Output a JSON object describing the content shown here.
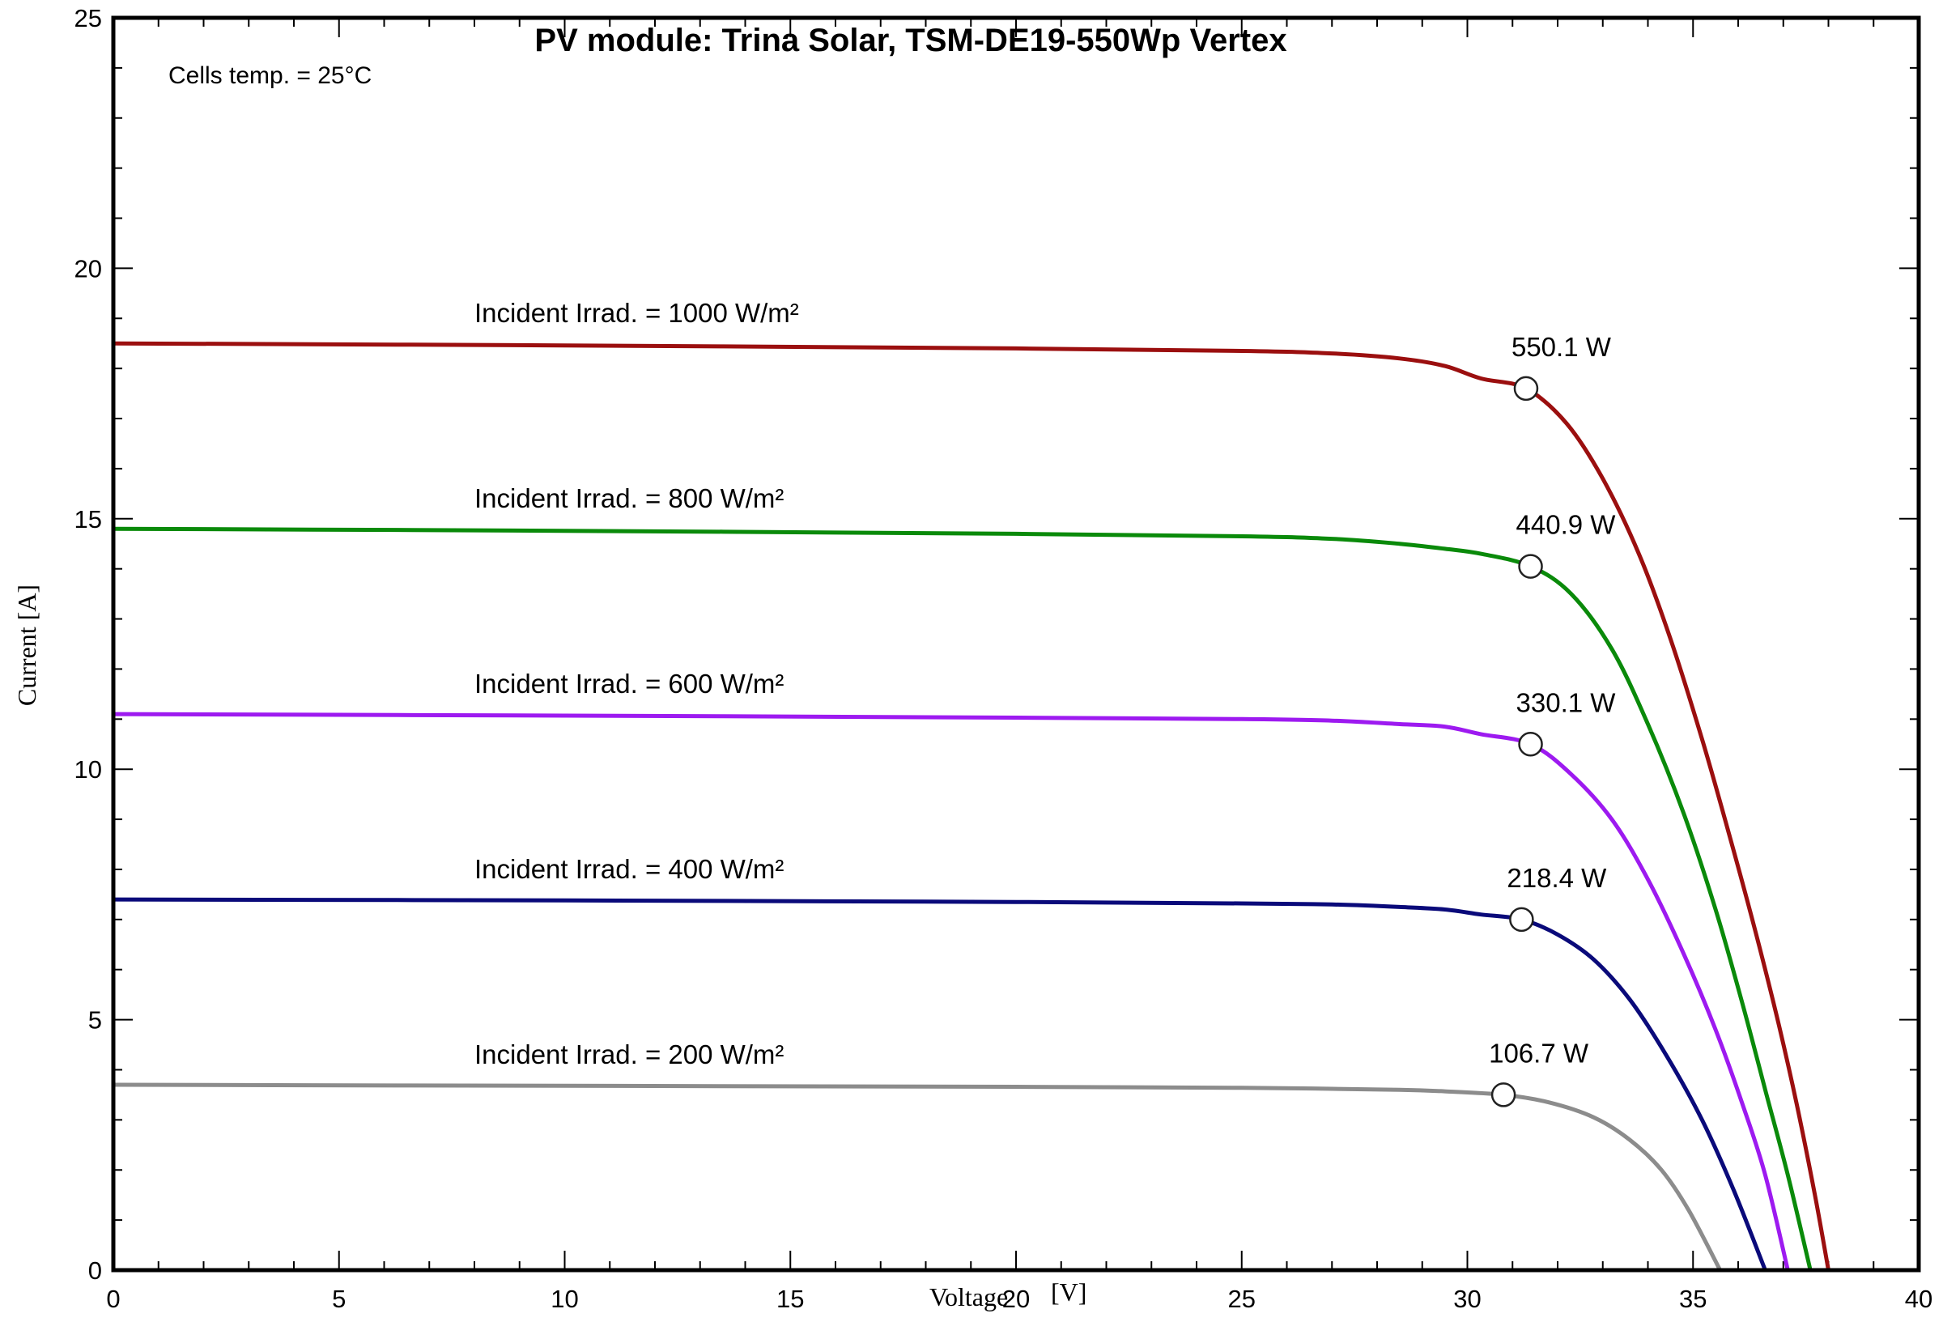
{
  "chart_data": {
    "type": "line",
    "title": "PV module:  Trina Solar, TSM-DE19-550Wp   Vertex",
    "annotation": "Cells temp. = 25°C",
    "xlabel": "Voltage",
    "xunit": "[V]",
    "ylabel": "Current [A]",
    "xlim": [
      0,
      40
    ],
    "ylim": [
      0,
      25
    ],
    "xticks": [
      "0",
      "5",
      "10",
      "15",
      "20",
      "25",
      "30",
      "35",
      "40"
    ],
    "yticks": [
      "0",
      "5",
      "10",
      "15",
      "20",
      "25"
    ],
    "grid": false,
    "series": [
      {
        "name": "Incident Irrad. = 1000 W/m²",
        "color": "#9B0F0F",
        "points": [
          [
            0,
            18.5
          ],
          [
            10,
            18.46
          ],
          [
            20,
            18.4
          ],
          [
            25,
            18.35
          ],
          [
            27,
            18.3
          ],
          [
            28.5,
            18.2
          ],
          [
            29.5,
            18.05
          ],
          [
            30.3,
            17.8
          ],
          [
            31.3,
            17.6
          ],
          [
            32.2,
            16.9
          ],
          [
            33,
            15.8
          ],
          [
            33.8,
            14.3
          ],
          [
            34.5,
            12.6
          ],
          [
            35.2,
            10.6
          ],
          [
            35.8,
            8.7
          ],
          [
            36.4,
            6.7
          ],
          [
            36.9,
            4.9
          ],
          [
            37.3,
            3.3
          ],
          [
            37.7,
            1.5
          ],
          [
            38,
            0
          ]
        ],
        "mpp": {
          "v": 31.3,
          "i": 17.6,
          "label": "550.1 W"
        }
      },
      {
        "name": "Incident Irrad. = 800 W/m²",
        "color": "#0A8A0A",
        "points": [
          [
            0,
            14.8
          ],
          [
            10,
            14.76
          ],
          [
            20,
            14.7
          ],
          [
            25,
            14.65
          ],
          [
            27,
            14.6
          ],
          [
            28.5,
            14.5
          ],
          [
            29.5,
            14.4
          ],
          [
            30.3,
            14.3
          ],
          [
            31.4,
            14.05
          ],
          [
            32.3,
            13.5
          ],
          [
            33.2,
            12.4
          ],
          [
            34,
            10.9
          ],
          [
            34.8,
            9.1
          ],
          [
            35.5,
            7.2
          ],
          [
            36.1,
            5.3
          ],
          [
            36.6,
            3.6
          ],
          [
            37.1,
            1.9
          ],
          [
            37.6,
            0
          ]
        ],
        "mpp": {
          "v": 31.4,
          "i": 14.05,
          "label": "440.9 W"
        }
      },
      {
        "name": "Incident Irrad. = 600 W/m²",
        "color": "#9D1AF0",
        "points": [
          [
            0,
            11.1
          ],
          [
            10,
            11.07
          ],
          [
            20,
            11.03
          ],
          [
            25,
            11.0
          ],
          [
            27,
            10.97
          ],
          [
            28.5,
            10.9
          ],
          [
            29.5,
            10.85
          ],
          [
            30.3,
            10.7
          ],
          [
            31.4,
            10.5
          ],
          [
            32.3,
            9.9
          ],
          [
            33.2,
            9.0
          ],
          [
            34,
            7.8
          ],
          [
            34.8,
            6.3
          ],
          [
            35.5,
            4.8
          ],
          [
            36.1,
            3.3
          ],
          [
            36.6,
            1.9
          ],
          [
            37.1,
            0
          ]
        ],
        "mpp": {
          "v": 31.4,
          "i": 10.5,
          "label": "330.1 W"
        }
      },
      {
        "name": "Incident Irrad. = 400 W/m²",
        "color": "#0A0A7A",
        "points": [
          [
            0,
            7.4
          ],
          [
            10,
            7.38
          ],
          [
            20,
            7.35
          ],
          [
            25,
            7.32
          ],
          [
            27,
            7.3
          ],
          [
            28.5,
            7.25
          ],
          [
            29.5,
            7.2
          ],
          [
            30.3,
            7.1
          ],
          [
            31.2,
            7.0
          ],
          [
            32,
            6.7
          ],
          [
            32.8,
            6.2
          ],
          [
            33.6,
            5.4
          ],
          [
            34.4,
            4.3
          ],
          [
            35.2,
            3.0
          ],
          [
            35.9,
            1.6
          ],
          [
            36.6,
            0
          ]
        ],
        "mpp": {
          "v": 31.2,
          "i": 7.0,
          "label": "218.4 W"
        }
      },
      {
        "name": "Incident Irrad. = 200 W/m²",
        "color": "#8C8C8C",
        "points": [
          [
            0,
            3.7
          ],
          [
            10,
            3.68
          ],
          [
            20,
            3.66
          ],
          [
            25,
            3.64
          ],
          [
            27,
            3.62
          ],
          [
            28.5,
            3.6
          ],
          [
            29.5,
            3.57
          ],
          [
            30.8,
            3.5
          ],
          [
            31.8,
            3.35
          ],
          [
            32.8,
            3.05
          ],
          [
            33.6,
            2.6
          ],
          [
            34.3,
            2.0
          ],
          [
            34.9,
            1.2
          ],
          [
            35.6,
            0
          ]
        ],
        "mpp": {
          "v": 30.8,
          "i": 3.5,
          "label": "106.7 W"
        }
      }
    ]
  }
}
